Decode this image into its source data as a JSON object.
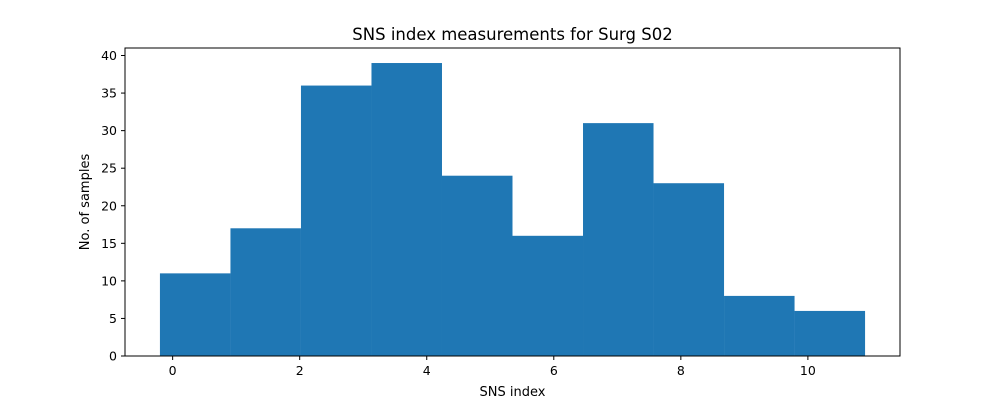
{
  "chart_data": {
    "type": "bar",
    "title": "SNS index measurements for Surg S02",
    "xlabel": "SNS index",
    "ylabel": "No. of samples",
    "bin_edges": [
      -0.2,
      0.91,
      2.02,
      3.13,
      4.24,
      5.35,
      6.46,
      7.57,
      8.68,
      9.79,
      10.9
    ],
    "values": [
      11,
      17,
      36,
      39,
      24,
      16,
      31,
      23,
      8,
      6
    ],
    "xlim": [
      -0.75,
      11.45
    ],
    "ylim": [
      0,
      41
    ],
    "x_ticks": [
      0,
      2,
      4,
      6,
      8,
      10
    ],
    "y_ticks": [
      0,
      5,
      10,
      15,
      20,
      25,
      30,
      35,
      40
    ],
    "bar_color": "#1f77b4",
    "grid": false,
    "legend": "none"
  }
}
